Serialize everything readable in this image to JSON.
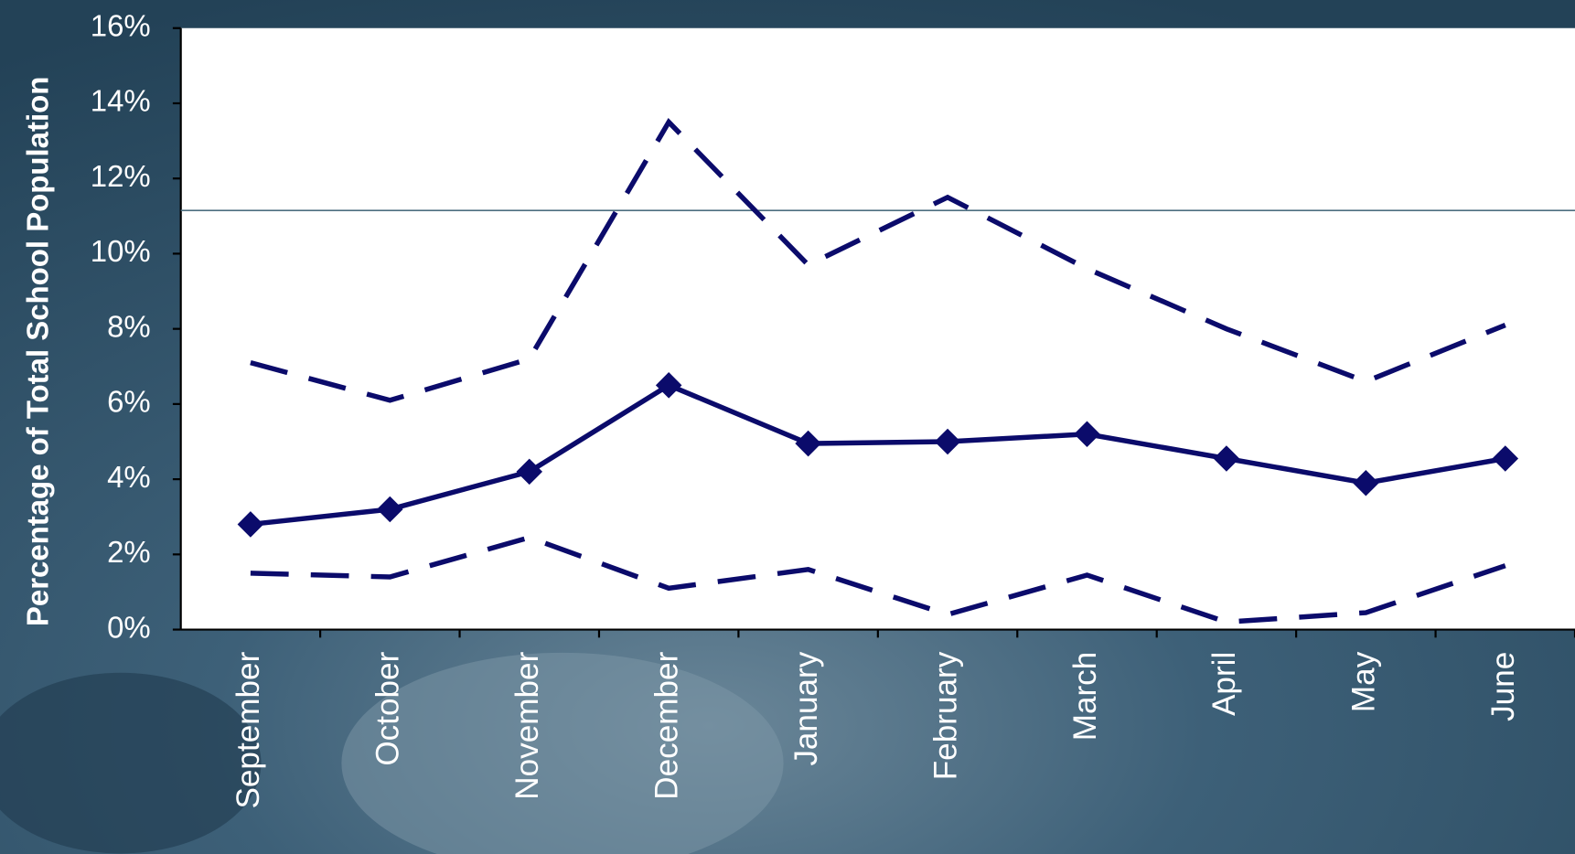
{
  "chart_data": {
    "type": "line",
    "y_label": "Percentage of Total School Population",
    "categories": [
      "September",
      "October",
      "November",
      "December",
      "January",
      "February",
      "March",
      "April",
      "May",
      "June"
    ],
    "series": [
      {
        "color": "#0b0b6b",
        "line": "solid",
        "marker": "diamond",
        "values": [
          2.8,
          3.2,
          4.2,
          6.5,
          4.95,
          5.0,
          5.2,
          4.55,
          3.9,
          4.55
        ]
      },
      {
        "color": "#0b0b6b",
        "line": "dashed",
        "values": [
          7.1,
          6.1,
          7.2,
          13.5,
          9.7,
          11.5,
          9.6,
          8.0,
          6.6,
          8.1
        ]
      },
      {
        "color": "#0b0b6b",
        "line": "dashed",
        "values": [
          1.5,
          1.4,
          2.45,
          1.1,
          1.6,
          0.4,
          1.45,
          0.2,
          0.45,
          1.7
        ]
      }
    ],
    "reference_line": 11.15,
    "ylim": [
      0,
      16
    ],
    "yticks": [
      {
        "value": 0,
        "label": "0%"
      },
      {
        "value": 2,
        "label": "2%"
      },
      {
        "value": 4,
        "label": "4%"
      },
      {
        "value": 6,
        "label": "6%"
      },
      {
        "value": 8,
        "label": "8%"
      },
      {
        "value": 10,
        "label": "10%"
      },
      {
        "value": 12,
        "label": "12%"
      },
      {
        "value": 14,
        "label": "14%"
      },
      {
        "value": 16,
        "label": "16%"
      }
    ]
  }
}
